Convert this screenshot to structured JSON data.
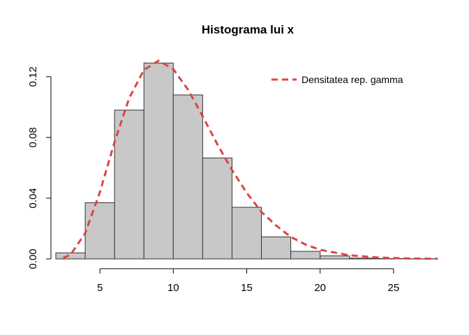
{
  "chart_data": {
    "type": "bar",
    "title": "Histograma lui x",
    "xlabel": "",
    "ylabel": "",
    "bin_edges": [
      2,
      4,
      6,
      8,
      10,
      12,
      14,
      16,
      18,
      20,
      22,
      24,
      26,
      28
    ],
    "values": [
      0.004,
      0.037,
      0.098,
      0.129,
      0.108,
      0.0665,
      0.034,
      0.0145,
      0.005,
      0.002,
      0.0005,
      0.0002,
      0.0001
    ],
    "xlim": [
      2,
      28
    ],
    "ylim": [
      0,
      0.13
    ],
    "x_ticks": [
      "5",
      "10",
      "15",
      "20",
      "25"
    ],
    "y_ticks": [
      "0.00",
      "0.04",
      "0.08",
      "0.12"
    ],
    "series": [
      {
        "name": "Densitatea rep. gamma",
        "kind": "line",
        "color": "#dd4444",
        "line_style": "dashed",
        "x": [
          2.5,
          3,
          4,
          5,
          6,
          7,
          8,
          9,
          10,
          11,
          12,
          13,
          14,
          15,
          16,
          17,
          18,
          19,
          20,
          22,
          24,
          26,
          28
        ],
        "values": [
          0.0007,
          0.0027,
          0.017,
          0.044,
          0.077,
          0.106,
          0.1245,
          0.1305,
          0.125,
          0.1115,
          0.094,
          0.0755,
          0.0585,
          0.0435,
          0.031,
          0.022,
          0.0145,
          0.0095,
          0.006,
          0.0024,
          0.0009,
          0.0003,
          0.0001
        ]
      }
    ],
    "legend_position": "top-right",
    "grid": false,
    "bar_color": "#c8c8c8"
  }
}
